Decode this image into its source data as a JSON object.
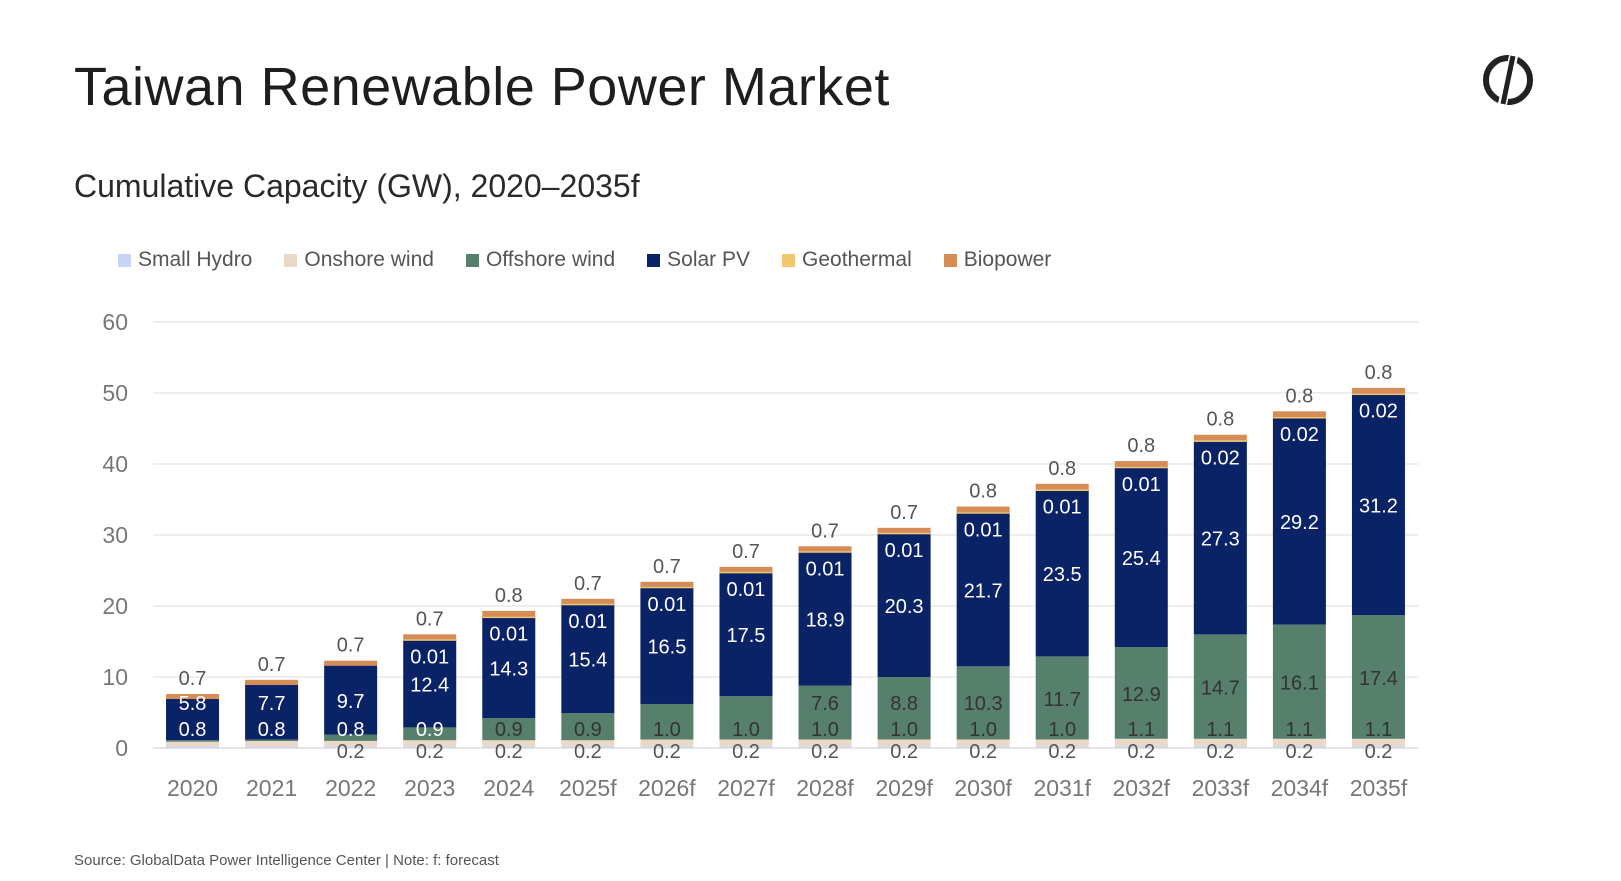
{
  "header": {
    "title": "Taiwan Renewable Power Market",
    "subtitle": "Cumulative Capacity (GW), 2020–2035f",
    "logo_icon": "globaldata-logo-icon"
  },
  "footer": {
    "source": "Source: GlobalData Power Intelligence Center | Note: f: forecast"
  },
  "chart_data": {
    "type": "bar",
    "stacked": true,
    "title": "Cumulative Capacity (GW), 2020–2035f",
    "xlabel": "",
    "ylabel": "",
    "ylim": [
      0,
      60
    ],
    "yticks": [
      0,
      10,
      20,
      30,
      40,
      50,
      60
    ],
    "grid": true,
    "legend_position": "top-left",
    "categories": [
      "2020",
      "2021",
      "2022",
      "2023",
      "2024",
      "2025f",
      "2026f",
      "2027f",
      "2028f",
      "2029f",
      "2030f",
      "2031f",
      "2032f",
      "2033f",
      "2034f",
      "2035f"
    ],
    "series": [
      {
        "name": "Small Hydro",
        "color": "#c9d5f7",
        "values": [
          0.2,
          0.2,
          0.2,
          0.2,
          0.2,
          0.2,
          0.2,
          0.2,
          0.2,
          0.2,
          0.2,
          0.2,
          0.2,
          0.2,
          0.2,
          0.2
        ],
        "labels": [
          null,
          null,
          "0.2",
          "0.2",
          "0.2",
          "0.2",
          "0.2",
          "0.2",
          "0.2",
          "0.2",
          "0.2",
          "0.2",
          "0.2",
          "0.2",
          "0.2",
          "0.2"
        ]
      },
      {
        "name": "Onshore wind",
        "color": "#ead9c6",
        "values": [
          0.8,
          0.8,
          0.8,
          0.9,
          0.9,
          0.9,
          1.0,
          1.0,
          1.0,
          1.0,
          1.0,
          1.0,
          1.1,
          1.1,
          1.1,
          1.1
        ],
        "labels": [
          "0.8",
          "0.8",
          "0.8",
          "0.9",
          "0.9",
          "0.9",
          "1.0",
          "1.0",
          "1.0",
          "1.0",
          "1.0",
          "1.0",
          "1.1",
          "1.1",
          "1.1",
          "1.1"
        ]
      },
      {
        "name": "Offshore wind",
        "color": "#56806c",
        "values": [
          0.1,
          0.2,
          0.9,
          1.8,
          3.1,
          3.8,
          5.0,
          6.1,
          7.6,
          8.8,
          10.3,
          11.7,
          12.9,
          14.7,
          16.1,
          17.4
        ],
        "labels": [
          null,
          null,
          null,
          null,
          null,
          null,
          null,
          null,
          "7.6",
          "8.8",
          "10.3",
          "11.7",
          "12.9",
          "14.7",
          "16.1",
          "17.4"
        ]
      },
      {
        "name": "Solar PV",
        "color": "#0a2266",
        "values": [
          5.8,
          7.7,
          9.7,
          12.4,
          14.3,
          15.4,
          16.5,
          17.5,
          18.9,
          20.3,
          21.7,
          23.5,
          25.4,
          27.3,
          29.2,
          31.2
        ],
        "labels": [
          "5.8",
          "7.7",
          "9.7",
          "12.4",
          "14.3",
          "15.4",
          "16.5",
          "17.5",
          "18.9",
          "20.3",
          "21.7",
          "23.5",
          "25.4",
          "27.3",
          "29.2",
          "31.2"
        ]
      },
      {
        "name": "Geothermal",
        "color": "#f1c870",
        "values": [
          0,
          0,
          0,
          0.01,
          0.01,
          0.01,
          0.01,
          0.01,
          0.01,
          0.01,
          0.01,
          0.01,
          0.01,
          0.02,
          0.02,
          0.02
        ],
        "labels": [
          null,
          null,
          null,
          "0.01",
          "0.01",
          "0.01",
          "0.01",
          "0.01",
          "0.01",
          "0.01",
          "0.01",
          "0.01",
          "0.01",
          "0.02",
          "0.02",
          "0.02"
        ]
      },
      {
        "name": "Biopower",
        "color": "#d68c55",
        "values": [
          0.7,
          0.7,
          0.7,
          0.7,
          0.8,
          0.7,
          0.7,
          0.7,
          0.7,
          0.7,
          0.8,
          0.8,
          0.8,
          0.8,
          0.8,
          0.8
        ],
        "labels": [
          "0.7",
          "0.7",
          "0.7",
          "0.7",
          "0.8",
          "0.7",
          "0.7",
          "0.7",
          "0.7",
          "0.7",
          "0.8",
          "0.8",
          "0.8",
          "0.8",
          "0.8",
          "0.8"
        ]
      }
    ]
  }
}
